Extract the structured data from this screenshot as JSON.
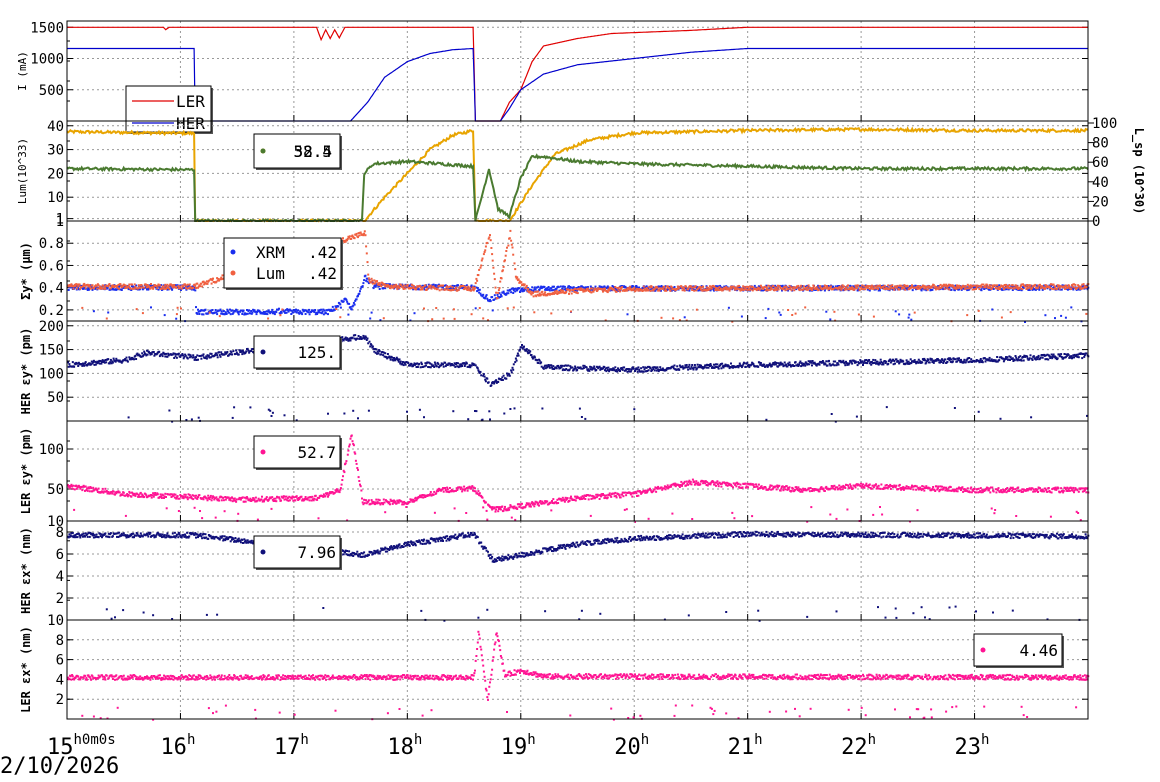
{
  "date_label": "2/10/2026",
  "x_axis": {
    "ticks": [
      {
        "h": 15,
        "label": "15",
        "suffix": "h0m0s"
      },
      {
        "h": 16,
        "label": "16",
        "suffix": "h"
      },
      {
        "h": 17,
        "label": "17",
        "suffix": "h"
      },
      {
        "h": 18,
        "label": "18",
        "suffix": "h"
      },
      {
        "h": 19,
        "label": "19",
        "suffix": "h"
      },
      {
        "h": 20,
        "label": "20",
        "suffix": "h"
      },
      {
        "h": 21,
        "label": "21",
        "suffix": "h"
      },
      {
        "h": 22,
        "label": "22",
        "suffix": "h"
      },
      {
        "h": 23,
        "label": "23",
        "suffix": "h"
      }
    ],
    "range_hours": [
      15,
      24
    ]
  },
  "chart_data": [
    {
      "type": "line",
      "ylabel": "I (mA)",
      "ylim": [
        0,
        1600
      ],
      "yticks": [
        500,
        1000,
        1500
      ],
      "legend": {
        "placement": "left",
        "entries": [
          "LER",
          "HER"
        ]
      },
      "series": [
        {
          "name": "LER",
          "color": "#e00000",
          "points": [
            [
              15,
              1500
            ],
            [
              15.85,
              1500
            ],
            [
              15.87,
              1460
            ],
            [
              15.9,
              1500
            ],
            [
              17.2,
              1500
            ],
            [
              17.24,
              1300
            ],
            [
              17.28,
              1460
            ],
            [
              17.32,
              1320
            ],
            [
              17.36,
              1460
            ],
            [
              17.4,
              1330
            ],
            [
              17.45,
              1500
            ],
            [
              18.58,
              1500
            ],
            [
              18.6,
              0
            ],
            [
              18.82,
              0
            ],
            [
              18.9,
              300
            ],
            [
              19.0,
              500
            ],
            [
              19.1,
              950
            ],
            [
              19.2,
              1200
            ],
            [
              19.5,
              1320
            ],
            [
              19.8,
              1400
            ],
            [
              20.5,
              1450
            ],
            [
              21.0,
              1500
            ],
            [
              24,
              1500
            ]
          ]
        },
        {
          "name": "HER",
          "color": "#0000cc",
          "points": [
            [
              15,
              1160
            ],
            [
              16.12,
              1160
            ],
            [
              16.13,
              0
            ],
            [
              17.5,
              0
            ],
            [
              17.65,
              300
            ],
            [
              17.8,
              700
            ],
            [
              18.0,
              950
            ],
            [
              18.2,
              1080
            ],
            [
              18.4,
              1140
            ],
            [
              18.58,
              1160
            ],
            [
              18.6,
              0
            ],
            [
              18.82,
              0
            ],
            [
              18.9,
              200
            ],
            [
              19.0,
              500
            ],
            [
              19.2,
              750
            ],
            [
              19.5,
              900
            ],
            [
              20.0,
              1000
            ],
            [
              20.5,
              1100
            ],
            [
              21.0,
              1160
            ],
            [
              24,
              1160
            ]
          ]
        }
      ]
    },
    {
      "type": "line",
      "ylabel": "Lum(10^33)",
      "ylabel_right": "L_sp (10^30)",
      "ylim": [
        0,
        42
      ],
      "yticks": [
        1,
        10,
        20,
        30,
        40
      ],
      "yticks_right": [
        0,
        20,
        40,
        60,
        80,
        100
      ],
      "legend": {
        "placement": "center",
        "entries": [
          "58.5",
          "32.4"
        ]
      },
      "series": [
        {
          "name": "Lum",
          "color": "#e8a400",
          "points": [
            [
              15,
              37.5
            ],
            [
              16.12,
              36.8
            ],
            [
              16.13,
              0
            ],
            [
              17.62,
              0
            ],
            [
              17.8,
              10
            ],
            [
              18.0,
              20
            ],
            [
              18.2,
              30
            ],
            [
              18.4,
              36
            ],
            [
              18.58,
              38
            ],
            [
              18.6,
              0
            ],
            [
              18.9,
              0
            ],
            [
              19.1,
              15
            ],
            [
              19.3,
              28
            ],
            [
              19.6,
              34
            ],
            [
              20.0,
              37
            ],
            [
              21.0,
              38
            ],
            [
              22.0,
              38.5
            ],
            [
              23.0,
              38
            ],
            [
              24,
              38
            ]
          ]
        },
        {
          "name": "Lsp",
          "color": "#4a7a30",
          "points": [
            [
              15,
              22
            ],
            [
              16.12,
              21.5
            ],
            [
              16.13,
              0
            ],
            [
              17.6,
              0
            ],
            [
              17.62,
              20
            ],
            [
              17.7,
              24
            ],
            [
              18.0,
              25
            ],
            [
              18.58,
              23
            ],
            [
              18.6,
              0
            ],
            [
              18.72,
              22
            ],
            [
              18.8,
              5
            ],
            [
              18.9,
              2
            ],
            [
              19.0,
              18
            ],
            [
              19.1,
              27
            ],
            [
              19.2,
              27
            ],
            [
              19.5,
              25
            ],
            [
              20.0,
              24
            ],
            [
              21.0,
              23
            ],
            [
              22.0,
              22
            ],
            [
              24,
              22
            ]
          ]
        }
      ]
    },
    {
      "type": "scatter",
      "ylabel": "Σy* (μm)",
      "ylim": [
        0.1,
        1.0
      ],
      "yticks": [
        0.2,
        0.4,
        0.6,
        0.8,
        1
      ],
      "legend": {
        "placement": "center-left",
        "entries": [
          "XRM .42",
          "Lum .42"
        ]
      },
      "series": [
        {
          "name": "XRM",
          "color": "#1a2eee",
          "points": [
            [
              15,
              0.41
            ],
            [
              16.12,
              0.41
            ],
            [
              16.13,
              0.19
            ],
            [
              17.3,
              0.19
            ],
            [
              17.45,
              0.3
            ],
            [
              17.5,
              0.2
            ],
            [
              17.62,
              0.5
            ],
            [
              17.7,
              0.42
            ],
            [
              18.58,
              0.41
            ],
            [
              18.72,
              0.3
            ],
            [
              18.9,
              0.38
            ],
            [
              19.2,
              0.4
            ],
            [
              24,
              0.41
            ]
          ]
        },
        {
          "name": "Lum",
          "color": "#f06040",
          "points": [
            [
              15,
              0.42
            ],
            [
              16.12,
              0.42
            ],
            [
              17.62,
              0.9
            ],
            [
              17.65,
              0.48
            ],
            [
              17.8,
              0.42
            ],
            [
              18.58,
              0.4
            ],
            [
              18.72,
              0.9
            ],
            [
              18.78,
              0.3
            ],
            [
              18.9,
              0.9
            ],
            [
              18.95,
              0.5
            ],
            [
              19.1,
              0.35
            ],
            [
              19.5,
              0.38
            ],
            [
              20.0,
              0.4
            ],
            [
              24,
              0.42
            ]
          ]
        }
      ]
    },
    {
      "type": "scatter",
      "ylabel": "HER εy* (pm)",
      "ylim": [
        0,
        210
      ],
      "yticks": [
        50,
        100,
        150,
        200
      ],
      "legend": {
        "placement": "center",
        "entries": [
          "125."
        ]
      },
      "series": [
        {
          "name": "HER ey",
          "color": "#10107a",
          "points": [
            [
              15,
              120
            ],
            [
              15.5,
              130
            ],
            [
              15.7,
              145
            ],
            [
              16.12,
              135
            ],
            [
              17.62,
              180
            ],
            [
              17.7,
              150
            ],
            [
              18.0,
              120
            ],
            [
              18.58,
              120
            ],
            [
              18.72,
              80
            ],
            [
              18.9,
              100
            ],
            [
              19.0,
              160
            ],
            [
              19.2,
              115
            ],
            [
              20.0,
              110
            ],
            [
              21.0,
              120
            ],
            [
              22.0,
              125
            ],
            [
              23.0,
              130
            ],
            [
              24,
              140
            ]
          ]
        }
      ]
    },
    {
      "type": "scatter",
      "ylabel": "LER εy* (pm)",
      "ylim": [
        10,
        135
      ],
      "yticks": [
        10,
        50,
        100
      ],
      "legend": {
        "placement": "center",
        "entries": [
          "52.7"
        ]
      },
      "series": [
        {
          "name": "LER ey",
          "color": "#ff1493",
          "points": [
            [
              15,
              55
            ],
            [
              15.5,
              45
            ],
            [
              16.0,
              42
            ],
            [
              16.5,
              38
            ],
            [
              17.2,
              40
            ],
            [
              17.4,
              50
            ],
            [
              17.5,
              120
            ],
            [
              17.6,
              35
            ],
            [
              18.0,
              35
            ],
            [
              18.3,
              50
            ],
            [
              18.58,
              52
            ],
            [
              18.75,
              25
            ],
            [
              19.0,
              30
            ],
            [
              19.5,
              40
            ],
            [
              20.0,
              45
            ],
            [
              20.5,
              60
            ],
            [
              21.0,
              55
            ],
            [
              21.5,
              50
            ],
            [
              22.0,
              55
            ],
            [
              23.0,
              50
            ],
            [
              24,
              50
            ]
          ]
        }
      ]
    },
    {
      "type": "scatter",
      "ylabel": "HER εx* (nm)",
      "ylim": [
        0,
        9
      ],
      "yticks": [
        2,
        4,
        6,
        8
      ],
      "legend": {
        "placement": "center",
        "entries": [
          "7.96"
        ]
      },
      "series": [
        {
          "name": "HER ex",
          "color": "#10107a",
          "points": [
            [
              15,
              7.8
            ],
            [
              16.12,
              7.8
            ],
            [
              17.62,
              6.0
            ],
            [
              18.0,
              7.0
            ],
            [
              18.58,
              7.9
            ],
            [
              18.75,
              5.5
            ],
            [
              19.0,
              6.0
            ],
            [
              19.5,
              7.0
            ],
            [
              20.0,
              7.5
            ],
            [
              21.0,
              7.9
            ],
            [
              24,
              7.7
            ]
          ]
        }
      ]
    },
    {
      "type": "scatter",
      "ylabel": "LER εx* (nm)",
      "ylim": [
        0,
        10
      ],
      "yticks": [
        2,
        4,
        6,
        8,
        10
      ],
      "legend": {
        "placement": "right",
        "entries": [
          "4.46"
        ]
      },
      "series": [
        {
          "name": "LER ex",
          "color": "#ff1493",
          "points": [
            [
              15,
              4.3
            ],
            [
              18.58,
              4.3
            ],
            [
              18.62,
              9
            ],
            [
              18.7,
              2
            ],
            [
              18.78,
              9
            ],
            [
              18.85,
              4.5
            ],
            [
              19.0,
              5
            ],
            [
              19.2,
              4.4
            ],
            [
              24,
              4.3
            ]
          ]
        }
      ]
    }
  ]
}
